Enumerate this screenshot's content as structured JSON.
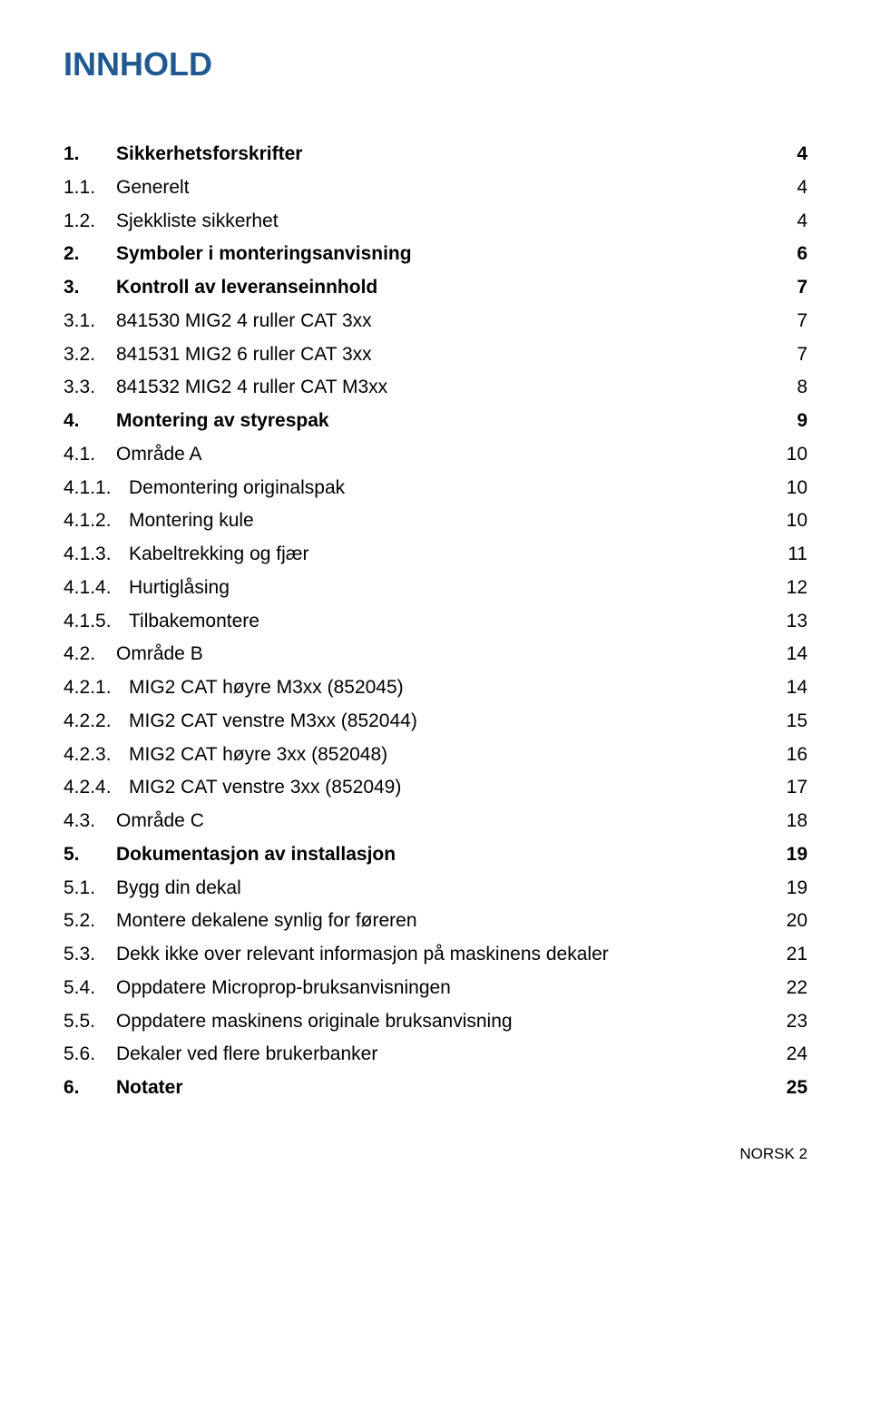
{
  "title": "INNHOLD",
  "toc": [
    {
      "level": 1,
      "num": "1.",
      "text": "Sikkerhetsforskrifter",
      "page": "4"
    },
    {
      "level": 2,
      "num": "1.1.",
      "text": "Generelt",
      "page": "4"
    },
    {
      "level": 2,
      "num": "1.2.",
      "text": "Sjekkliste sikkerhet",
      "page": "4"
    },
    {
      "level": 1,
      "num": "2.",
      "text": "Symboler i monteringsanvisning",
      "page": "6"
    },
    {
      "level": 1,
      "num": "3.",
      "text": "Kontroll av leveranseinnhold",
      "page": "7"
    },
    {
      "level": 2,
      "num": "3.1.",
      "text": "841530 MIG2 4 ruller CAT 3xx",
      "page": "7"
    },
    {
      "level": 2,
      "num": "3.2.",
      "text": "841531 MIG2 6 ruller CAT 3xx",
      "page": "7"
    },
    {
      "level": 2,
      "num": "3.3.",
      "text": "841532 MIG2 4 ruller CAT M3xx",
      "page": "8"
    },
    {
      "level": 1,
      "num": "4.",
      "text": "Montering av styrespak",
      "page": "9"
    },
    {
      "level": 2,
      "num": "4.1.",
      "text": "Område A",
      "page": "10"
    },
    {
      "level": 3,
      "num": "4.1.1.",
      "text": "Demontering originalspak",
      "page": "10"
    },
    {
      "level": 3,
      "num": "4.1.2.",
      "text": "Montering kule",
      "page": "10"
    },
    {
      "level": 3,
      "num": "4.1.3.",
      "text": "Kabeltrekking og fjær",
      "page": "11"
    },
    {
      "level": 3,
      "num": "4.1.4.",
      "text": "Hurtiglåsing",
      "page": "12"
    },
    {
      "level": 3,
      "num": "4.1.5.",
      "text": "Tilbakemontere",
      "page": "13"
    },
    {
      "level": 2,
      "num": "4.2.",
      "text": "Område B",
      "page": "14"
    },
    {
      "level": 3,
      "num": "4.2.1.",
      "text": "MIG2 CAT høyre M3xx (852045)",
      "page": "14"
    },
    {
      "level": 3,
      "num": "4.2.2.",
      "text": "MIG2 CAT venstre M3xx (852044)",
      "page": "15"
    },
    {
      "level": 3,
      "num": "4.2.3.",
      "text": "MIG2 CAT høyre 3xx (852048)",
      "page": "16"
    },
    {
      "level": 3,
      "num": "4.2.4.",
      "text": "MIG2 CAT venstre 3xx (852049)",
      "page": "17"
    },
    {
      "level": 2,
      "num": "4.3.",
      "text": "Område C",
      "page": "18"
    },
    {
      "level": 1,
      "num": "5.",
      "text": "Dokumentasjon av installasjon",
      "page": "19"
    },
    {
      "level": 2,
      "num": "5.1.",
      "text": "Bygg din dekal",
      "page": "19"
    },
    {
      "level": 2,
      "num": "5.2.",
      "text": "Montere dekalene synlig for føreren",
      "page": "20"
    },
    {
      "level": 2,
      "num": "5.3.",
      "text": "Dekk ikke over relevant informasjon på maskinens dekaler",
      "page": "21"
    },
    {
      "level": 2,
      "num": "5.4.",
      "text": "Oppdatere Microprop-bruksanvisningen",
      "page": "22"
    },
    {
      "level": 2,
      "num": "5.5.",
      "text": "Oppdatere maskinens originale bruksanvisning",
      "page": "23"
    },
    {
      "level": 2,
      "num": "5.6.",
      "text": "Dekaler ved flere brukerbanker",
      "page": "24"
    },
    {
      "level": 1,
      "num": "6.",
      "text": "Notater",
      "page": "25"
    }
  ],
  "footer": "NORSK 2",
  "colors": {
    "title": "#205890",
    "text": "#000000",
    "background": "#ffffff"
  },
  "typography": {
    "title_fontsize": 36,
    "body_fontsize": 21,
    "footer_fontsize": 17,
    "font_family": "Arial"
  }
}
